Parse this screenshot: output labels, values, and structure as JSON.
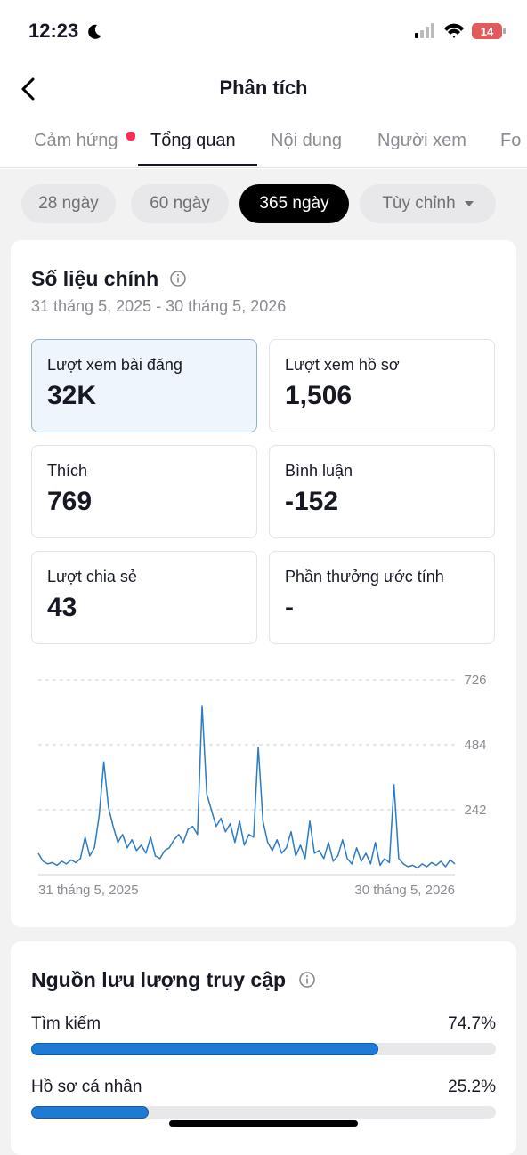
{
  "status_bar": {
    "time": "12:23",
    "battery": "14"
  },
  "header": {
    "title": "Phân tích"
  },
  "tabs": [
    "Cảm hứng",
    "Tổng quan",
    "Nội dung",
    "Người xem",
    "Fo"
  ],
  "active_tab": 1,
  "filters": [
    "28 ngày",
    "60 ngày",
    "365 ngày",
    "Tùy chỉnh"
  ],
  "active_filter": 2,
  "key_metrics": {
    "title": "Số liệu chính",
    "date_range": "31 tháng 5, 2025 - 30 tháng 5, 2026",
    "metrics": [
      {
        "label": "Lượt xem bài đăng",
        "value": "32K"
      },
      {
        "label": "Lượt xem hồ sơ",
        "value": "1,506"
      },
      {
        "label": "Thích",
        "value": "769"
      },
      {
        "label": "Bình luận",
        "value": "-152"
      },
      {
        "label": "Lượt chia sẻ",
        "value": "43"
      },
      {
        "label": "Phần thưởng ước tính",
        "value": "-"
      }
    ]
  },
  "chart_data": {
    "type": "line",
    "color": "#2b7bc4",
    "categories": [
      "31 tháng 5, 2025",
      null,
      null,
      null,
      null,
      null,
      null,
      null,
      null,
      null,
      null,
      null,
      null,
      null,
      null,
      null,
      null,
      null,
      null,
      null,
      null,
      null,
      null,
      null,
      null,
      null,
      null,
      null,
      null,
      null,
      null,
      null,
      null,
      null,
      null,
      null,
      null,
      null,
      null,
      null,
      null,
      null,
      null,
      null,
      null,
      null,
      null,
      null,
      null,
      null,
      null,
      null,
      null,
      null,
      null,
      null,
      null,
      null,
      null,
      null,
      null,
      null,
      null,
      null,
      null,
      null,
      null,
      null,
      null,
      null,
      null,
      null,
      null,
      null,
      null,
      null,
      null,
      null,
      null,
      null,
      null,
      null,
      null,
      null,
      null,
      null,
      null,
      null,
      null,
      "30 tháng 5, 2026"
    ],
    "values": [
      80,
      50,
      40,
      45,
      35,
      50,
      40,
      55,
      45,
      60,
      140,
      70,
      100,
      220,
      420,
      250,
      180,
      120,
      150,
      100,
      130,
      90,
      110,
      80,
      140,
      70,
      60,
      90,
      100,
      130,
      150,
      120,
      170,
      180,
      150,
      630,
      300,
      240,
      180,
      210,
      160,
      190,
      120,
      200,
      110,
      150,
      140,
      475,
      200,
      120,
      90,
      130,
      80,
      100,
      160,
      70,
      110,
      60,
      200,
      80,
      90,
      60,
      120,
      50,
      70,
      130,
      60,
      40,
      100,
      50,
      80,
      40,
      120,
      35,
      60,
      45,
      335,
      60,
      40,
      30,
      35,
      25,
      40,
      30,
      45,
      35,
      50,
      30,
      55,
      40
    ],
    "ylim": [
      0,
      726
    ],
    "yticks": [
      242,
      484,
      726
    ],
    "grid": true
  },
  "traffic": {
    "title": "Nguồn lưu lượng truy cập",
    "categories": [
      "Tìm kiếm",
      "Hồ sơ cá nhân"
    ],
    "values": [
      74.7,
      25.2
    ],
    "value_labels": [
      "74.7%",
      "25.2%"
    ],
    "color": "#1f7ad6"
  }
}
